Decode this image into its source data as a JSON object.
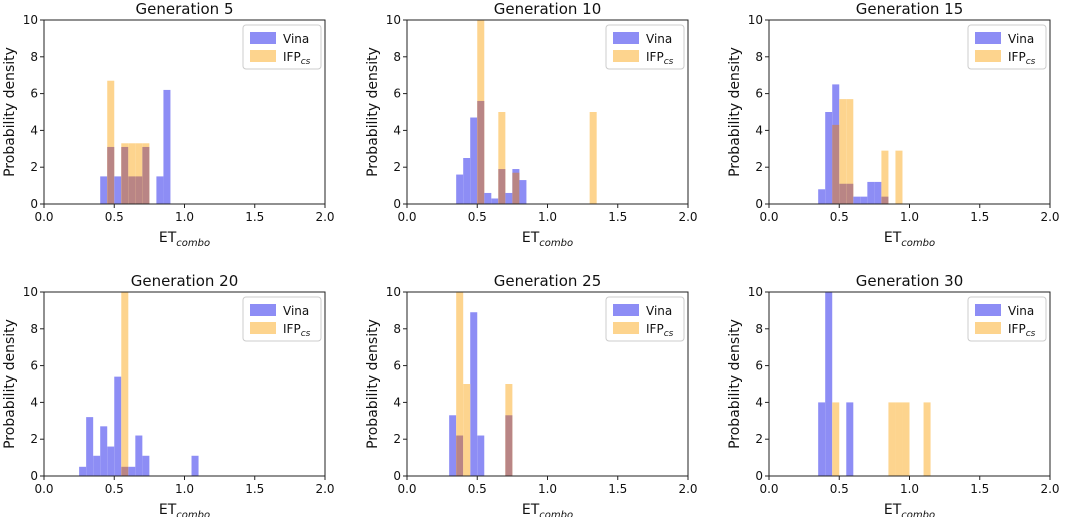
{
  "colors": {
    "vina": "#8d8df5",
    "ifp": "#fdd48e",
    "overlap": "#b98585",
    "axis": "#222222"
  },
  "legend": {
    "vina": "Vina",
    "ifp_main": "IFP",
    "ifp_sub": "cs"
  },
  "axis_text": {
    "xlabel_main": "ET",
    "xlabel_sub": "combo",
    "ylabel": "Probability density"
  },
  "chart_data": [
    {
      "type": "bar",
      "title": "Generation 5",
      "xlim": [
        0,
        2
      ],
      "ylim": [
        0,
        10
      ],
      "bin_width": 0.05,
      "xticks": [
        0.0,
        0.5,
        1.0,
        1.5,
        2.0
      ],
      "yticks": [
        0,
        2,
        4,
        6,
        8,
        10
      ],
      "series": [
        {
          "name": "Vina",
          "bins": [
            [
              0.4,
              1.5
            ],
            [
              0.45,
              3.1
            ],
            [
              0.5,
              1.5
            ],
            [
              0.55,
              3.1
            ],
            [
              0.6,
              1.5
            ],
            [
              0.65,
              1.5
            ],
            [
              0.7,
              3.1
            ],
            [
              0.8,
              1.5
            ],
            [
              0.85,
              6.2
            ]
          ]
        },
        {
          "name": "IFPcs",
          "bins": [
            [
              0.45,
              6.7
            ],
            [
              0.55,
              3.3
            ],
            [
              0.6,
              3.3
            ],
            [
              0.65,
              3.3
            ],
            [
              0.7,
              3.3
            ]
          ]
        }
      ]
    },
    {
      "type": "bar",
      "title": "Generation 10",
      "xlim": [
        0,
        2
      ],
      "ylim": [
        0,
        10
      ],
      "bin_width": 0.05,
      "xticks": [
        0.0,
        0.5,
        1.0,
        1.5,
        2.0
      ],
      "yticks": [
        0,
        2,
        4,
        6,
        8,
        10
      ],
      "series": [
        {
          "name": "Vina",
          "bins": [
            [
              0.35,
              1.6
            ],
            [
              0.4,
              2.5
            ],
            [
              0.45,
              4.7
            ],
            [
              0.5,
              5.6
            ],
            [
              0.55,
              0.6
            ],
            [
              0.6,
              0.3
            ],
            [
              0.65,
              1.9
            ],
            [
              0.7,
              0.6
            ],
            [
              0.75,
              1.9
            ],
            [
              0.8,
              1.3
            ]
          ]
        },
        {
          "name": "IFPcs",
          "bins": [
            [
              0.5,
              10
            ],
            [
              0.65,
              5.0
            ],
            [
              0.75,
              1.7
            ],
            [
              1.3,
              5.0
            ]
          ]
        }
      ]
    },
    {
      "type": "bar",
      "title": "Generation 15",
      "xlim": [
        0,
        2
      ],
      "ylim": [
        0,
        10
      ],
      "bin_width": 0.05,
      "xticks": [
        0.0,
        0.5,
        1.0,
        1.5,
        2.0
      ],
      "yticks": [
        0,
        2,
        4,
        6,
        8,
        10
      ],
      "series": [
        {
          "name": "Vina",
          "bins": [
            [
              0.35,
              0.8
            ],
            [
              0.4,
              5.0
            ],
            [
              0.45,
              6.5
            ],
            [
              0.5,
              1.1
            ],
            [
              0.55,
              1.1
            ],
            [
              0.6,
              0.4
            ],
            [
              0.65,
              0.4
            ],
            [
              0.7,
              1.2
            ],
            [
              0.75,
              1.2
            ],
            [
              0.8,
              0.4
            ]
          ]
        },
        {
          "name": "IFPcs",
          "bins": [
            [
              0.45,
              4.3
            ],
            [
              0.5,
              5.7
            ],
            [
              0.55,
              5.7
            ],
            [
              0.8,
              2.9
            ],
            [
              0.9,
              2.9
            ]
          ]
        }
      ]
    },
    {
      "type": "bar",
      "title": "Generation 20",
      "xlim": [
        0,
        2
      ],
      "ylim": [
        0,
        10
      ],
      "bin_width": 0.05,
      "xticks": [
        0.0,
        0.5,
        1.0,
        1.5,
        2.0
      ],
      "yticks": [
        0,
        2,
        4,
        6,
        8,
        10
      ],
      "series": [
        {
          "name": "Vina",
          "bins": [
            [
              0.25,
              0.5
            ],
            [
              0.3,
              3.2
            ],
            [
              0.35,
              1.1
            ],
            [
              0.4,
              2.7
            ],
            [
              0.45,
              1.6
            ],
            [
              0.5,
              5.4
            ],
            [
              0.55,
              0.5
            ],
            [
              0.6,
              0.5
            ],
            [
              0.65,
              2.2
            ],
            [
              0.7,
              1.1
            ],
            [
              1.05,
              1.1
            ]
          ]
        },
        {
          "name": "IFPcs",
          "bins": [
            [
              0.55,
              10
            ]
          ]
        }
      ]
    },
    {
      "type": "bar",
      "title": "Generation 25",
      "xlim": [
        0,
        2
      ],
      "ylim": [
        0,
        10
      ],
      "bin_width": 0.05,
      "xticks": [
        0.0,
        0.5,
        1.0,
        1.5,
        2.0
      ],
      "yticks": [
        0,
        2,
        4,
        6,
        8,
        10
      ],
      "series": [
        {
          "name": "Vina",
          "bins": [
            [
              0.3,
              3.3
            ],
            [
              0.35,
              2.2
            ],
            [
              0.45,
              8.9
            ],
            [
              0.5,
              2.2
            ],
            [
              0.7,
              3.3
            ]
          ]
        },
        {
          "name": "IFPcs",
          "bins": [
            [
              0.35,
              10
            ],
            [
              0.4,
              5.0
            ],
            [
              0.7,
              5.0
            ]
          ]
        }
      ]
    },
    {
      "type": "bar",
      "title": "Generation 30",
      "xlim": [
        0,
        2
      ],
      "ylim": [
        0,
        10
      ],
      "bin_width": 0.05,
      "xticks": [
        0.0,
        0.5,
        1.0,
        1.5,
        2.0
      ],
      "yticks": [
        0,
        2,
        4,
        6,
        8,
        10
      ],
      "series": [
        {
          "name": "Vina",
          "bins": [
            [
              0.35,
              4.0
            ],
            [
              0.4,
              10
            ],
            [
              0.55,
              4.0
            ]
          ]
        },
        {
          "name": "IFPcs",
          "bins": [
            [
              0.45,
              4.0
            ],
            [
              0.85,
              4.0
            ],
            [
              0.9,
              4.0
            ],
            [
              0.95,
              4.0
            ],
            [
              1.1,
              4.0
            ]
          ]
        }
      ]
    }
  ]
}
